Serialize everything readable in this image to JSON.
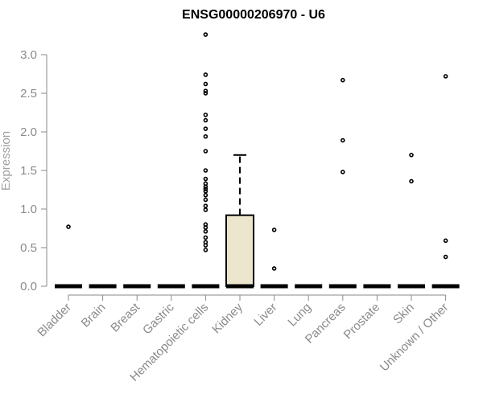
{
  "chart_data": {
    "type": "boxplot",
    "title": "ENSG00000206970 - U6",
    "xlabel": "",
    "ylabel": "Expression",
    "ylim": [
      0,
      3.3
    ],
    "yticks": [
      "0.0",
      "0.5",
      "1.0",
      "1.5",
      "2.0",
      "2.5",
      "3.0"
    ],
    "ytick_values": [
      0,
      0.5,
      1.0,
      1.5,
      2.0,
      2.5,
      3.0
    ],
    "grid": false,
    "categories": [
      "Bladder",
      "Brain",
      "Breast",
      "Gastric",
      "Hematopoietic cells",
      "Kidney",
      "Liver",
      "Lung",
      "Pancreas",
      "Prostate",
      "Skin",
      "Unknown / Other"
    ],
    "box_fill": "#ece7cc",
    "series": [
      {
        "category": "Bladder",
        "min": 0,
        "q1": 0,
        "median": 0,
        "q3": 0,
        "max": 0,
        "outliers": [
          0.77
        ]
      },
      {
        "category": "Brain",
        "min": 0,
        "q1": 0,
        "median": 0,
        "q3": 0,
        "max": 0,
        "outliers": []
      },
      {
        "category": "Breast",
        "min": 0,
        "q1": 0,
        "median": 0,
        "q3": 0,
        "max": 0,
        "outliers": []
      },
      {
        "category": "Gastric",
        "min": 0,
        "q1": 0,
        "median": 0,
        "q3": 0,
        "max": 0,
        "outliers": []
      },
      {
        "category": "Hematopoietic cells",
        "min": 0,
        "q1": 0,
        "median": 0,
        "q3": 0,
        "max": 0,
        "outliers": [
          3.26,
          2.74,
          2.62,
          2.53,
          2.5,
          2.22,
          2.15,
          2.04,
          1.94,
          1.75,
          1.5,
          1.39,
          1.33,
          1.29,
          1.26,
          1.23,
          1.18,
          1.12,
          1.04,
          0.99,
          0.8,
          0.76,
          0.71,
          0.63,
          0.57,
          0.53,
          0.47
        ]
      },
      {
        "category": "Kidney",
        "min": 0,
        "q1": 0,
        "median": 0,
        "q3": 0.92,
        "max": 1.7,
        "outliers": []
      },
      {
        "category": "Liver",
        "min": 0,
        "q1": 0,
        "median": 0,
        "q3": 0,
        "max": 0,
        "outliers": [
          0.73,
          0.23
        ]
      },
      {
        "category": "Lung",
        "min": 0,
        "q1": 0,
        "median": 0,
        "q3": 0,
        "max": 0,
        "outliers": []
      },
      {
        "category": "Pancreas",
        "min": 0,
        "q1": 0,
        "median": 0,
        "q3": 0,
        "max": 0,
        "outliers": [
          2.67,
          1.89,
          1.48
        ]
      },
      {
        "category": "Prostate",
        "min": 0,
        "q1": 0,
        "median": 0,
        "q3": 0,
        "max": 0,
        "outliers": []
      },
      {
        "category": "Skin",
        "min": 0,
        "q1": 0,
        "median": 0,
        "q3": 0,
        "max": 0,
        "outliers": [
          1.7,
          1.36
        ]
      },
      {
        "category": "Unknown / Other",
        "min": 0,
        "q1": 0,
        "median": 0,
        "q3": 0,
        "max": 0,
        "outliers": [
          2.72,
          0.59,
          0.38
        ]
      }
    ]
  }
}
